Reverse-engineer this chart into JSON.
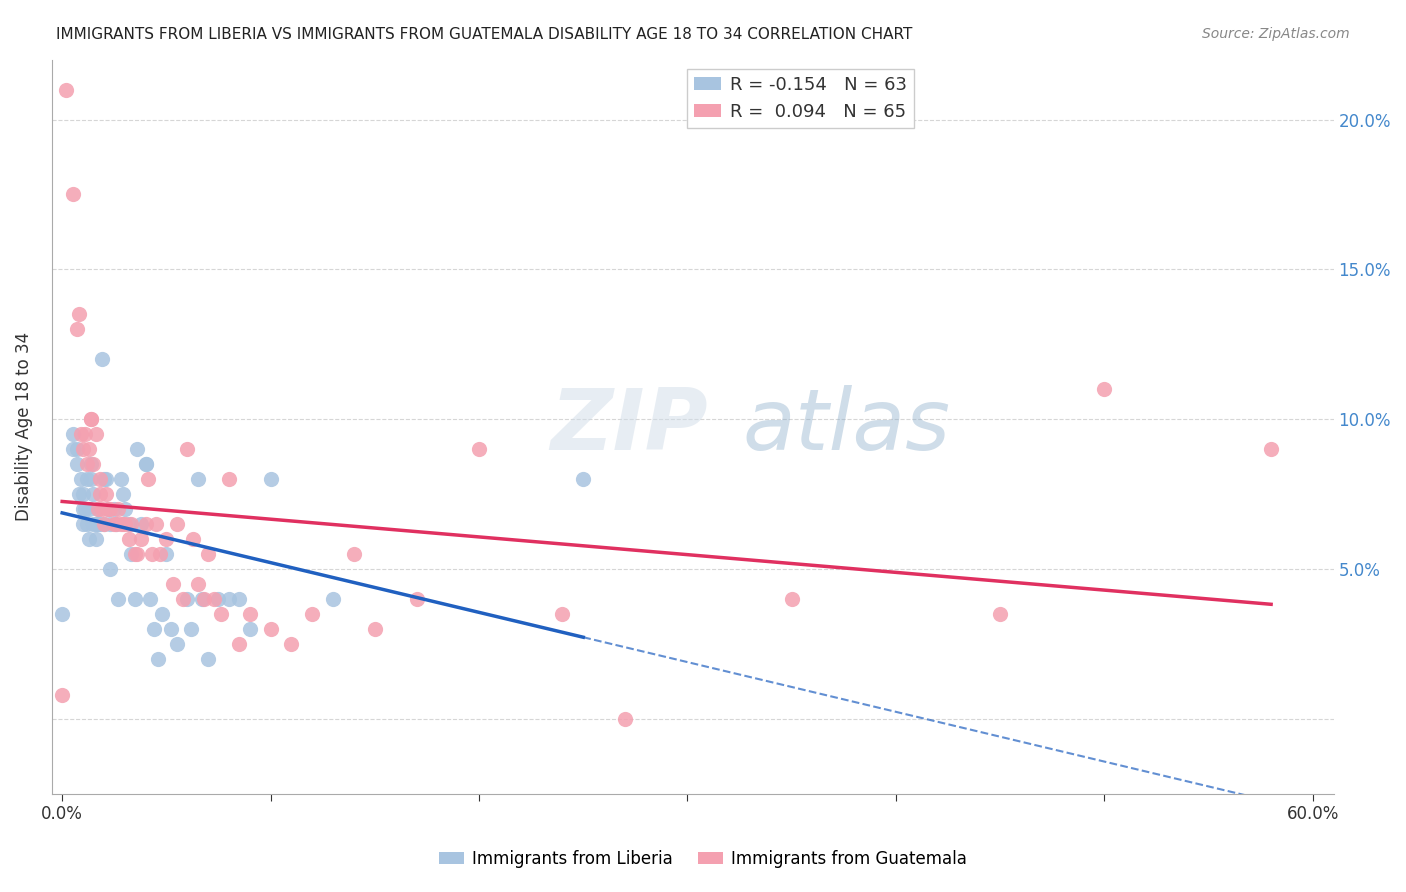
{
  "title": "IMMIGRANTS FROM LIBERIA VS IMMIGRANTS FROM GUATEMALA DISABILITY AGE 18 TO 34 CORRELATION CHART",
  "source": "Source: ZipAtlas.com",
  "ylabel": "Disability Age 18 to 34",
  "xlabel": "",
  "xlim": [
    0.0,
    0.6
  ],
  "ylim": [
    -0.02,
    0.22
  ],
  "yticks": [
    0.0,
    0.05,
    0.1,
    0.15,
    0.2
  ],
  "ytick_labels": [
    "",
    "5.0%",
    "10.0%",
    "15.0%",
    "20.0%"
  ],
  "xticks": [
    0.0,
    0.1,
    0.2,
    0.3,
    0.4,
    0.5,
    0.6
  ],
  "xtick_labels": [
    "0.0%",
    "",
    "",
    "",
    "",
    "",
    "60.0%"
  ],
  "liberia_R": -0.154,
  "liberia_N": 63,
  "guatemala_R": 0.094,
  "guatemala_N": 65,
  "liberia_color": "#a8c4e0",
  "guatemala_color": "#f4a0b0",
  "liberia_line_color": "#2060c0",
  "guatemala_line_color": "#e03060",
  "watermark": "ZIPatlas",
  "liberia_x": [
    0.0,
    0.005,
    0.005,
    0.007,
    0.007,
    0.008,
    0.009,
    0.01,
    0.01,
    0.01,
    0.011,
    0.012,
    0.012,
    0.013,
    0.013,
    0.014,
    0.014,
    0.015,
    0.015,
    0.016,
    0.016,
    0.017,
    0.017,
    0.018,
    0.019,
    0.02,
    0.02,
    0.021,
    0.022,
    0.023,
    0.023,
    0.025,
    0.026,
    0.027,
    0.028,
    0.029,
    0.03,
    0.032,
    0.033,
    0.035,
    0.036,
    0.038,
    0.04,
    0.04,
    0.042,
    0.044,
    0.046,
    0.048,
    0.05,
    0.052,
    0.055,
    0.06,
    0.062,
    0.065,
    0.067,
    0.07,
    0.075,
    0.08,
    0.085,
    0.09,
    0.1,
    0.13,
    0.25
  ],
  "liberia_y": [
    0.035,
    0.09,
    0.095,
    0.085,
    0.09,
    0.075,
    0.08,
    0.065,
    0.07,
    0.075,
    0.07,
    0.065,
    0.08,
    0.06,
    0.07,
    0.08,
    0.085,
    0.065,
    0.075,
    0.06,
    0.065,
    0.065,
    0.07,
    0.065,
    0.12,
    0.065,
    0.08,
    0.08,
    0.07,
    0.05,
    0.065,
    0.07,
    0.065,
    0.04,
    0.08,
    0.075,
    0.07,
    0.065,
    0.055,
    0.04,
    0.09,
    0.065,
    0.085,
    0.085,
    0.04,
    0.03,
    0.02,
    0.035,
    0.055,
    0.03,
    0.025,
    0.04,
    0.03,
    0.08,
    0.04,
    0.02,
    0.04,
    0.04,
    0.04,
    0.03,
    0.08,
    0.04,
    0.08
  ],
  "guatemala_x": [
    0.0,
    0.002,
    0.005,
    0.007,
    0.008,
    0.009,
    0.01,
    0.011,
    0.012,
    0.013,
    0.014,
    0.014,
    0.015,
    0.016,
    0.017,
    0.018,
    0.018,
    0.019,
    0.02,
    0.021,
    0.022,
    0.023,
    0.025,
    0.026,
    0.027,
    0.028,
    0.029,
    0.03,
    0.032,
    0.033,
    0.035,
    0.036,
    0.038,
    0.04,
    0.041,
    0.043,
    0.045,
    0.047,
    0.05,
    0.053,
    0.055,
    0.058,
    0.06,
    0.063,
    0.065,
    0.068,
    0.07,
    0.073,
    0.076,
    0.08,
    0.085,
    0.09,
    0.1,
    0.11,
    0.12,
    0.14,
    0.15,
    0.17,
    0.2,
    0.24,
    0.27,
    0.35,
    0.45,
    0.5,
    0.58
  ],
  "guatemala_y": [
    0.008,
    0.21,
    0.175,
    0.13,
    0.135,
    0.095,
    0.09,
    0.095,
    0.085,
    0.09,
    0.1,
    0.1,
    0.085,
    0.095,
    0.07,
    0.08,
    0.075,
    0.07,
    0.065,
    0.075,
    0.07,
    0.07,
    0.065,
    0.065,
    0.07,
    0.065,
    0.065,
    0.065,
    0.06,
    0.065,
    0.055,
    0.055,
    0.06,
    0.065,
    0.08,
    0.055,
    0.065,
    0.055,
    0.06,
    0.045,
    0.065,
    0.04,
    0.09,
    0.06,
    0.045,
    0.04,
    0.055,
    0.04,
    0.035,
    0.08,
    0.025,
    0.035,
    0.03,
    0.025,
    0.035,
    0.055,
    0.03,
    0.04,
    0.09,
    0.035,
    0.0,
    0.04,
    0.035,
    0.11,
    0.09
  ]
}
